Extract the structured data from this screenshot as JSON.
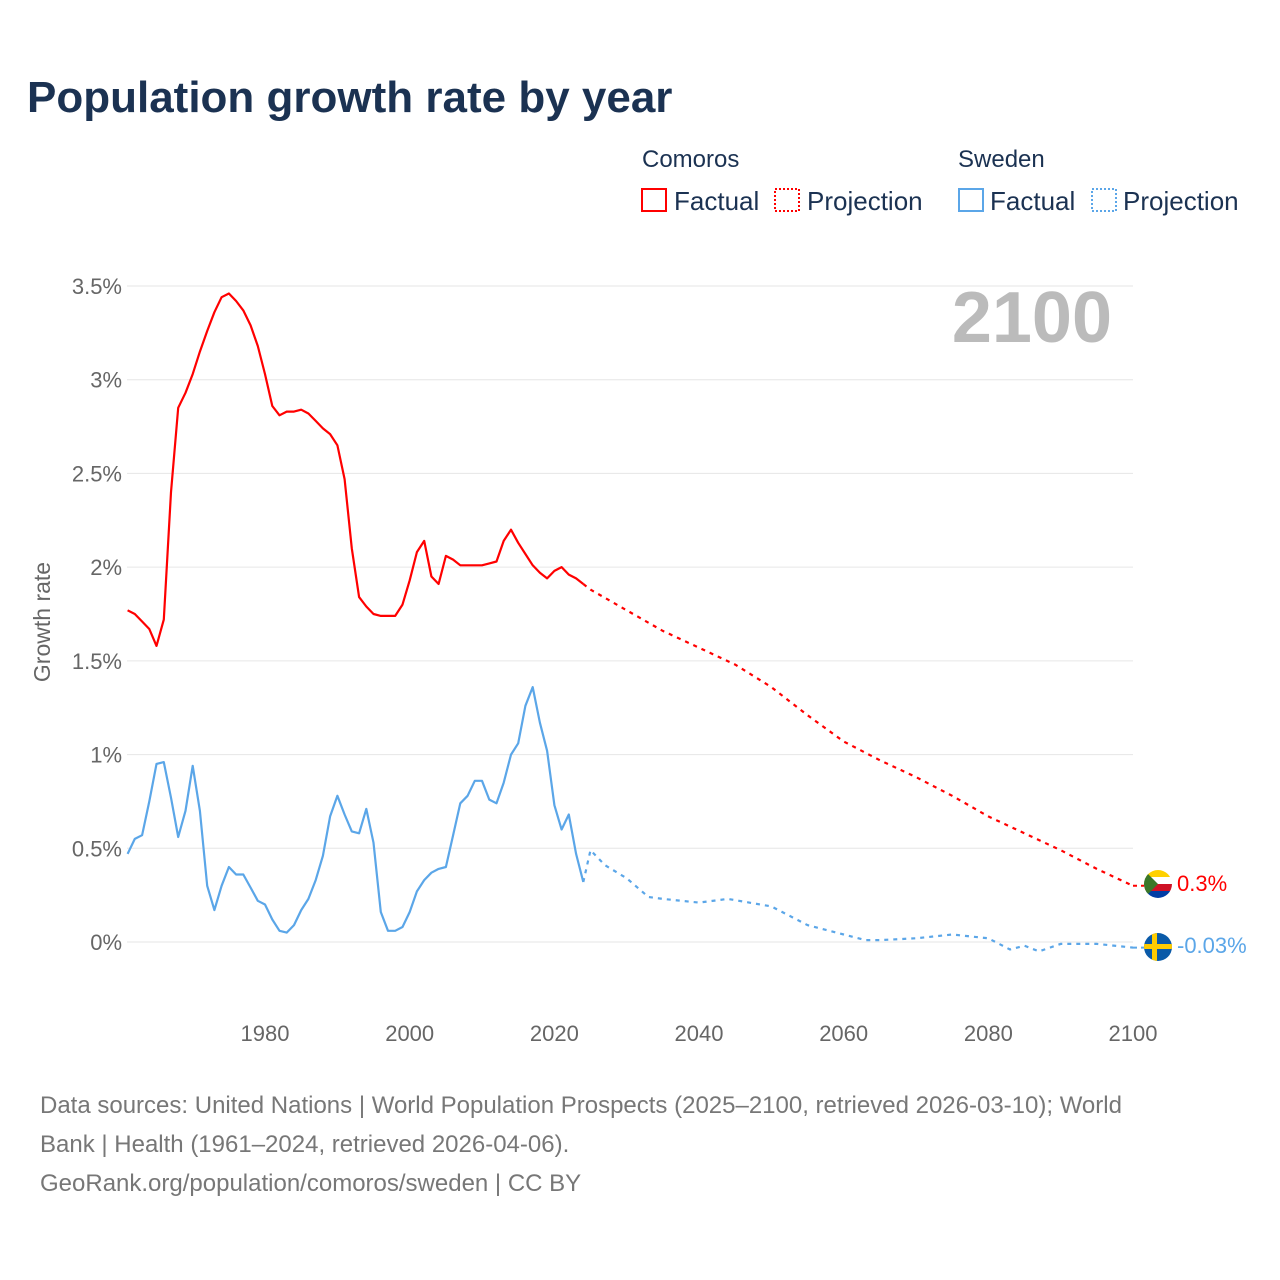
{
  "title": "Population growth rate by year",
  "year_display": "2100",
  "legend": {
    "groups": [
      {
        "country": "Comoros",
        "factual": "Factual",
        "projection": "Projection",
        "color": "#ff0000"
      },
      {
        "country": "Sweden",
        "factual": "Factual",
        "projection": "Projection",
        "color": "#5ba6e8"
      }
    ]
  },
  "footer": {
    "line1": "Data sources: United Nations | World Population Prospects (2025–2100, retrieved 2026-03-10); World",
    "line2": "Bank | Health (1961–2024, retrieved 2026-04-06).",
    "line3": "GeoRank.org/population/comoros/sweden | CC BY"
  },
  "chart_data": {
    "type": "line",
    "title": "Population growth rate by year",
    "xlabel": "",
    "ylabel": "Growth rate",
    "xlim": [
      1961,
      2100
    ],
    "ylim": [
      -0.25,
      3.5
    ],
    "x_ticks": [
      1980,
      2000,
      2020,
      2040,
      2060,
      2080,
      2100
    ],
    "y_ticks": [
      {
        "v": 0,
        "label": "0%"
      },
      {
        "v": 0.5,
        "label": "0.5%"
      },
      {
        "v": 1,
        "label": "1%"
      },
      {
        "v": 1.5,
        "label": "1.5%"
      },
      {
        "v": 2,
        "label": "2%"
      },
      {
        "v": 2.5,
        "label": "2.5%"
      },
      {
        "v": 3,
        "label": "3%"
      },
      {
        "v": 3.5,
        "label": "3.5%"
      }
    ],
    "grid": true,
    "legend_position": "top-right",
    "series": [
      {
        "name": "Comoros",
        "color": "#ff0000",
        "end_label": "0.3%",
        "flag": "comoros-flag",
        "factual": {
          "x": [
            1961,
            1962,
            1963,
            1964,
            1965,
            1966,
            1967,
            1968,
            1969,
            1970,
            1971,
            1972,
            1973,
            1974,
            1975,
            1976,
            1977,
            1978,
            1979,
            1980,
            1981,
            1982,
            1983,
            1984,
            1985,
            1986,
            1987,
            1988,
            1989,
            1990,
            1991,
            1992,
            1993,
            1994,
            1995,
            1996,
            1997,
            1998,
            1999,
            2000,
            2001,
            2002,
            2003,
            2004,
            2005,
            2006,
            2007,
            2008,
            2009,
            2010,
            2011,
            2012,
            2013,
            2014,
            2015,
            2016,
            2017,
            2018,
            2019,
            2020,
            2021,
            2022,
            2023,
            2024
          ],
          "y": [
            1.77,
            1.75,
            1.71,
            1.67,
            1.58,
            1.72,
            2.4,
            2.85,
            2.93,
            3.03,
            3.15,
            3.26,
            3.36,
            3.44,
            3.46,
            3.42,
            3.37,
            3.29,
            3.18,
            3.03,
            2.86,
            2.81,
            2.83,
            2.83,
            2.84,
            2.82,
            2.78,
            2.74,
            2.71,
            2.65,
            2.47,
            2.1,
            1.84,
            1.79,
            1.75,
            1.74,
            1.74,
            1.74,
            1.8,
            1.93,
            2.08,
            2.14,
            1.95,
            1.91,
            2.06,
            2.04,
            2.01,
            2.01,
            2.01,
            2.01,
            2.02,
            2.03,
            2.14,
            2.2,
            2.13,
            2.07,
            2.01,
            1.97,
            1.94,
            1.98,
            2.0,
            1.96,
            1.94,
            1.91
          ]
        },
        "projection": {
          "x": [
            2024,
            2025,
            2030,
            2035,
            2040,
            2045,
            2050,
            2055,
            2060,
            2065,
            2070,
            2075,
            2080,
            2085,
            2090,
            2095,
            2100
          ],
          "y": [
            1.91,
            1.88,
            1.77,
            1.66,
            1.57,
            1.48,
            1.36,
            1.21,
            1.07,
            0.97,
            0.88,
            0.78,
            0.67,
            0.58,
            0.49,
            0.39,
            0.3
          ]
        }
      },
      {
        "name": "Sweden",
        "color": "#5ba6e8",
        "end_label": "-0.03%",
        "flag": "sweden-flag",
        "factual": {
          "x": [
            1961,
            1962,
            1963,
            1964,
            1965,
            1966,
            1967,
            1968,
            1969,
            1970,
            1971,
            1972,
            1973,
            1974,
            1975,
            1976,
            1977,
            1978,
            1979,
            1980,
            1981,
            1982,
            1983,
            1984,
            1985,
            1986,
            1987,
            1988,
            1989,
            1990,
            1991,
            1992,
            1993,
            1994,
            1995,
            1996,
            1997,
            1998,
            1999,
            2000,
            2001,
            2002,
            2003,
            2004,
            2005,
            2006,
            2007,
            2008,
            2009,
            2010,
            2011,
            2012,
            2013,
            2014,
            2015,
            2016,
            2017,
            2018,
            2019,
            2020,
            2021,
            2022,
            2023,
            2024
          ],
          "y": [
            0.47,
            0.55,
            0.57,
            0.75,
            0.95,
            0.96,
            0.77,
            0.56,
            0.7,
            0.94,
            0.7,
            0.3,
            0.17,
            0.3,
            0.4,
            0.36,
            0.36,
            0.29,
            0.22,
            0.2,
            0.12,
            0.06,
            0.05,
            0.09,
            0.17,
            0.23,
            0.33,
            0.46,
            0.67,
            0.78,
            0.68,
            0.59,
            0.58,
            0.71,
            0.53,
            0.16,
            0.06,
            0.06,
            0.08,
            0.16,
            0.27,
            0.33,
            0.37,
            0.39,
            0.4,
            0.57,
            0.74,
            0.78,
            0.86,
            0.86,
            0.76,
            0.74,
            0.85,
            1.0,
            1.06,
            1.26,
            1.36,
            1.17,
            1.02,
            0.73,
            0.6,
            0.68,
            0.47,
            0.32
          ]
        },
        "projection": {
          "x": [
            2024,
            2025,
            2027,
            2030,
            2033,
            2035,
            2040,
            2044,
            2050,
            2055,
            2060,
            2063,
            2065,
            2070,
            2075,
            2080,
            2083,
            2085,
            2087,
            2090,
            2095,
            2100
          ],
          "y": [
            0.32,
            0.49,
            0.41,
            0.34,
            0.24,
            0.23,
            0.21,
            0.23,
            0.19,
            0.09,
            0.04,
            0.01,
            0.01,
            0.02,
            0.04,
            0.02,
            -0.04,
            -0.02,
            -0.05,
            -0.01,
            -0.01,
            -0.03
          ]
        }
      }
    ]
  }
}
